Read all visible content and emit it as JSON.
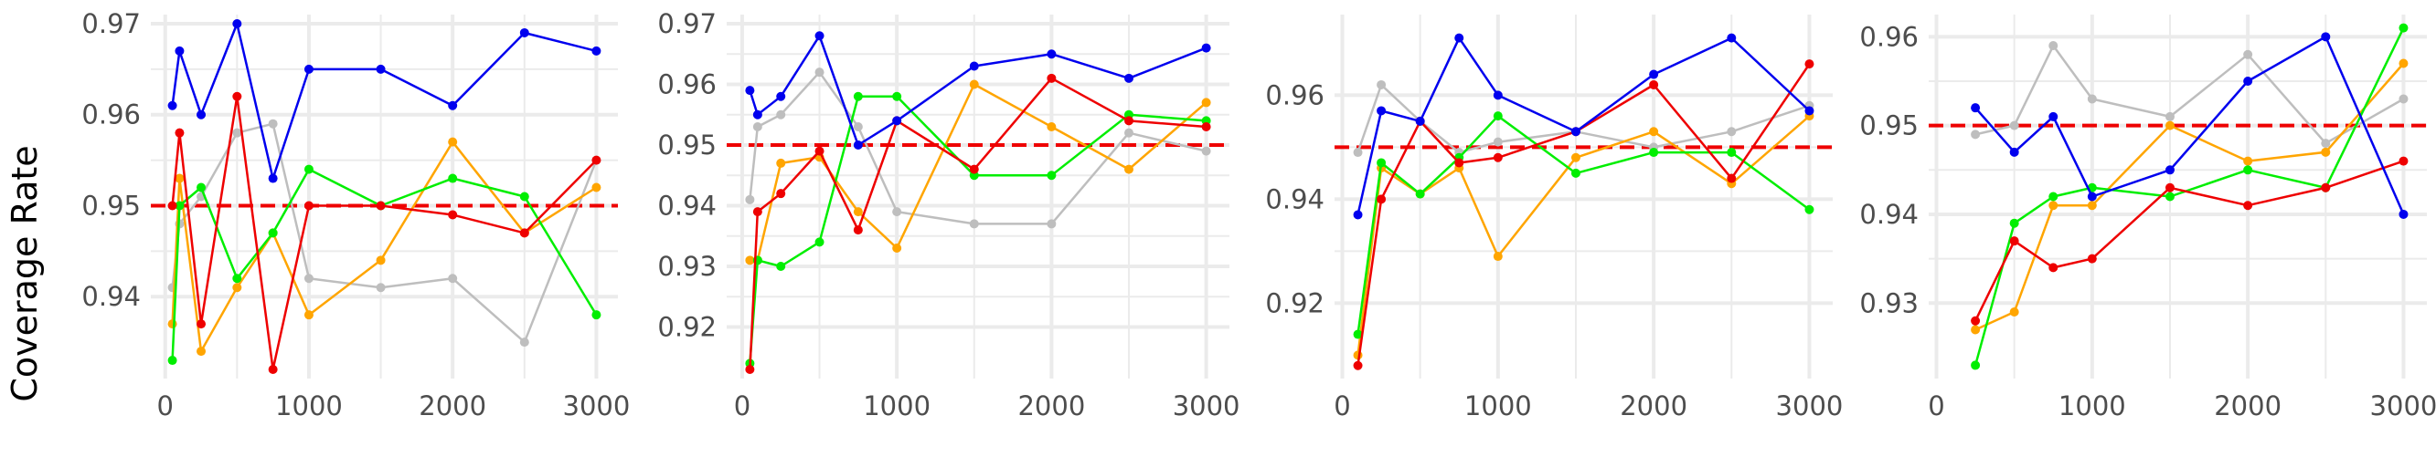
{
  "figure": {
    "ylabel": "Coverage Rate"
  },
  "colors": {
    "blue": "#0000ee",
    "red": "#ee0000",
    "green": "#00ee00",
    "orange": "#ffa500",
    "gray": "#bebebe",
    "reference": "#ee0000",
    "grid": "#ebebeb"
  },
  "chart_data": [
    {
      "type": "line",
      "xlabel": "",
      "ylabel": "Coverage Rate",
      "xlim": [
        -100,
        3150
      ],
      "ylim": [
        0.931,
        0.971
      ],
      "xticks": [
        0,
        1000,
        2000,
        3000
      ],
      "xtick_labels": [
        "0",
        "1000",
        "2000",
        "3000"
      ],
      "yticks": [
        0.94,
        0.95,
        0.96,
        0.97
      ],
      "ytick_labels": [
        "0.94",
        "0.95",
        "0.96",
        "0.97"
      ],
      "reference_line": 0.95,
      "grid": true,
      "series": [
        {
          "color": "gray",
          "x": [
            50,
            100,
            250,
            500,
            750,
            1000,
            1500,
            2000,
            2500,
            3000
          ],
          "y": [
            0.941,
            0.948,
            0.951,
            0.958,
            0.959,
            0.942,
            0.941,
            0.942,
            0.935,
            0.955
          ]
        },
        {
          "color": "orange",
          "x": [
            50,
            100,
            250,
            500,
            750,
            1000,
            1500,
            2000,
            2500,
            3000
          ],
          "y": [
            0.937,
            0.953,
            0.934,
            0.941,
            0.947,
            0.938,
            0.944,
            0.957,
            0.947,
            0.952
          ]
        },
        {
          "color": "green",
          "x": [
            50,
            100,
            250,
            500,
            750,
            1000,
            1500,
            2000,
            2500,
            3000
          ],
          "y": [
            0.933,
            0.95,
            0.952,
            0.942,
            0.947,
            0.954,
            0.95,
            0.953,
            0.951,
            0.938
          ]
        },
        {
          "color": "red",
          "x": [
            50,
            100,
            250,
            500,
            750,
            1000,
            1500,
            2000,
            2500,
            3000
          ],
          "y": [
            0.95,
            0.958,
            0.937,
            0.962,
            0.932,
            0.95,
            0.95,
            0.949,
            0.947,
            0.955
          ]
        },
        {
          "color": "blue",
          "x": [
            50,
            100,
            250,
            500,
            750,
            1000,
            1500,
            2000,
            2500,
            3000
          ],
          "y": [
            0.961,
            0.967,
            0.96,
            0.97,
            0.953,
            0.965,
            0.965,
            0.961,
            0.969,
            0.967
          ]
        }
      ]
    },
    {
      "type": "line",
      "xlabel": "",
      "ylabel": "",
      "xlim": [
        -100,
        3150
      ],
      "ylim": [
        0.9115,
        0.9715
      ],
      "xticks": [
        0,
        1000,
        2000,
        3000
      ],
      "xtick_labels": [
        "0",
        "1000",
        "2000",
        "3000"
      ],
      "yticks": [
        0.92,
        0.93,
        0.94,
        0.95,
        0.96,
        0.97
      ],
      "ytick_labels": [
        "0.92",
        "0.93",
        "0.94",
        "0.95",
        "0.96",
        "0.97"
      ],
      "reference_line": 0.95,
      "grid": true,
      "series": [
        {
          "color": "gray",
          "x": [
            50,
            100,
            250,
            500,
            750,
            1000,
            1500,
            2000,
            2500,
            3000
          ],
          "y": [
            0.941,
            0.953,
            0.955,
            0.962,
            0.953,
            0.939,
            0.937,
            0.937,
            0.952,
            0.949
          ]
        },
        {
          "color": "orange",
          "x": [
            50,
            100,
            250,
            500,
            750,
            1000,
            1500,
            2000,
            2500,
            3000
          ],
          "y": [
            0.931,
            0.931,
            0.947,
            0.948,
            0.939,
            0.933,
            0.96,
            0.953,
            0.946,
            0.957
          ]
        },
        {
          "color": "green",
          "x": [
            50,
            100,
            250,
            500,
            750,
            1000,
            1500,
            2000,
            2500,
            3000
          ],
          "y": [
            0.914,
            0.931,
            0.93,
            0.934,
            0.958,
            0.958,
            0.945,
            0.945,
            0.955,
            0.954
          ]
        },
        {
          "color": "red",
          "x": [
            50,
            100,
            250,
            500,
            750,
            1000,
            1500,
            2000,
            2500,
            3000
          ],
          "y": [
            0.913,
            0.939,
            0.942,
            0.949,
            0.936,
            0.954,
            0.946,
            0.961,
            0.954,
            0.953
          ]
        },
        {
          "color": "blue",
          "x": [
            50,
            100,
            250,
            500,
            750,
            1000,
            1500,
            2000,
            2500,
            3000
          ],
          "y": [
            0.959,
            0.955,
            0.958,
            0.968,
            0.95,
            0.954,
            0.963,
            0.965,
            0.961,
            0.966
          ]
        }
      ]
    },
    {
      "type": "line",
      "xlabel": "",
      "ylabel": "",
      "xlim": [
        -50,
        3150
      ],
      "ylim": [
        0.9055,
        0.9755
      ],
      "xticks": [
        0,
        1000,
        2000,
        3000
      ],
      "xtick_labels": [
        "0",
        "1000",
        "2000",
        "3000"
      ],
      "yticks": [
        0.92,
        0.94,
        0.96
      ],
      "ytick_labels": [
        "0.92",
        "0.94",
        "0.96"
      ],
      "reference_line": 0.95,
      "grid": true,
      "series": [
        {
          "color": "gray",
          "x": [
            100,
            250,
            500,
            750,
            1000,
            1500,
            2000,
            2500,
            3000
          ],
          "y": [
            0.949,
            0.962,
            0.955,
            0.949,
            0.951,
            0.953,
            0.95,
            0.953,
            0.958
          ]
        },
        {
          "color": "orange",
          "x": [
            100,
            250,
            500,
            750,
            1000,
            1500,
            2000,
            2500,
            3000
          ],
          "y": [
            0.91,
            0.946,
            0.941,
            0.946,
            0.929,
            0.948,
            0.953,
            0.943,
            0.956
          ]
        },
        {
          "color": "green",
          "x": [
            100,
            250,
            500,
            750,
            1000,
            1500,
            2000,
            2500,
            3000
          ],
          "y": [
            0.914,
            0.947,
            0.941,
            0.948,
            0.956,
            0.945,
            0.949,
            0.949,
            0.938
          ]
        },
        {
          "color": "red",
          "x": [
            100,
            250,
            500,
            750,
            1000,
            1500,
            2000,
            2500,
            3000
          ],
          "y": [
            0.908,
            0.94,
            0.955,
            0.947,
            0.948,
            0.953,
            0.962,
            0.944,
            0.966
          ]
        },
        {
          "color": "blue",
          "x": [
            100,
            250,
            500,
            750,
            1000,
            1500,
            2000,
            2500,
            3000
          ],
          "y": [
            0.937,
            0.957,
            0.955,
            0.971,
            0.96,
            0.953,
            0.964,
            0.971,
            0.957
          ]
        }
      ]
    },
    {
      "type": "line",
      "xlabel": "",
      "ylabel": "",
      "xlim": [
        -50,
        3150
      ],
      "ylim": [
        0.9215,
        0.9625
      ],
      "xticks": [
        0,
        1000,
        2000,
        3000
      ],
      "xtick_labels": [
        "0",
        "1000",
        "2000",
        "3000"
      ],
      "yticks": [
        0.93,
        0.94,
        0.95,
        0.96
      ],
      "ytick_labels": [
        "0.93",
        "0.94",
        "0.95",
        "0.96"
      ],
      "reference_line": 0.95,
      "grid": true,
      "series": [
        {
          "color": "gray",
          "x": [
            250,
            500,
            750,
            1000,
            1500,
            2000,
            2500,
            3000
          ],
          "y": [
            0.949,
            0.95,
            0.959,
            0.953,
            0.951,
            0.958,
            0.948,
            0.953
          ]
        },
        {
          "color": "orange",
          "x": [
            250,
            500,
            750,
            1000,
            1500,
            2000,
            2500,
            3000
          ],
          "y": [
            0.927,
            0.929,
            0.941,
            0.941,
            0.95,
            0.946,
            0.947,
            0.957
          ]
        },
        {
          "color": "green",
          "x": [
            250,
            500,
            750,
            1000,
            1500,
            2000,
            2500,
            3000
          ],
          "y": [
            0.923,
            0.939,
            0.942,
            0.943,
            0.942,
            0.945,
            0.943,
            0.961
          ]
        },
        {
          "color": "red",
          "x": [
            250,
            500,
            750,
            1000,
            1500,
            2000,
            2500,
            3000
          ],
          "y": [
            0.928,
            0.937,
            0.934,
            0.935,
            0.943,
            0.941,
            0.943,
            0.946
          ]
        },
        {
          "color": "blue",
          "x": [
            250,
            500,
            750,
            1000,
            1500,
            2000,
            2500,
            3000
          ],
          "y": [
            0.952,
            0.947,
            0.951,
            0.942,
            0.945,
            0.955,
            0.96,
            0.94
          ]
        }
      ]
    }
  ]
}
